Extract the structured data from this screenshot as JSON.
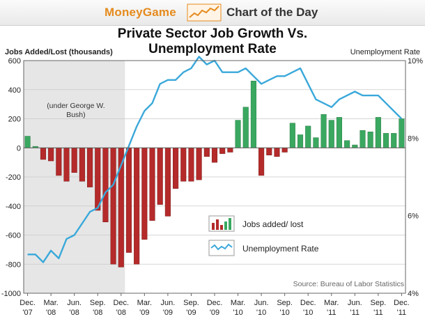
{
  "header": {
    "brand": "MoneyGame",
    "tagline": "Chart of the Day",
    "logo_icon": "rising-chart-icon",
    "brand_color": "#e58a1d"
  },
  "chart_data": {
    "type": "bar",
    "title_line1": "Private Sector Job Growth Vs.",
    "title_line2": "Unemployment Rate",
    "ylabel_left": "Jobs Added/Lost (thousands)",
    "ylabel_right": "Unemployment Rate",
    "ylim_left": [
      -1000,
      600
    ],
    "yticks_left": [
      "600",
      "400",
      "200",
      "0",
      "-200",
      "-400",
      "-600",
      "-800",
      "-1000"
    ],
    "ylim_right": [
      4,
      10
    ],
    "yticks_right": [
      "10%",
      "8%",
      "6%",
      "4%"
    ],
    "x_tick_labels": [
      [
        "Dec.",
        "'07"
      ],
      [
        "Mar.",
        "'08"
      ],
      [
        "Jun.",
        "'08"
      ],
      [
        "Sep.",
        "'08"
      ],
      [
        "Dec.",
        "'08"
      ],
      [
        "Mar.",
        "'09"
      ],
      [
        "Jun.",
        "'09"
      ],
      [
        "Sep.",
        "'09"
      ],
      [
        "Dec.",
        "'09"
      ],
      [
        "Mar.",
        "'10"
      ],
      [
        "Jun.",
        "'10"
      ],
      [
        "Sep.",
        "'10"
      ],
      [
        "Dec.",
        "'10"
      ],
      [
        "Mar.",
        "'11"
      ],
      [
        "Jun.",
        "'11"
      ],
      [
        "Sep.",
        "'11"
      ],
      [
        "Dec.",
        "'11"
      ]
    ],
    "shaded_region_label": "(under George W. Bush)",
    "shaded_region": [
      "Dec. '07",
      "Dec. '08"
    ],
    "months": [
      "Dec '07",
      "Jan '08",
      "Feb '08",
      "Mar '08",
      "Apr '08",
      "May '08",
      "Jun '08",
      "Jul '08",
      "Aug '08",
      "Sep '08",
      "Oct '08",
      "Nov '08",
      "Dec '08",
      "Jan '09",
      "Feb '09",
      "Mar '09",
      "Apr '09",
      "May '09",
      "Jun '09",
      "Jul '09",
      "Aug '09",
      "Sep '09",
      "Oct '09",
      "Nov '09",
      "Dec '09",
      "Jan '10",
      "Feb '10",
      "Mar '10",
      "Apr '10",
      "May '10",
      "Jun '10",
      "Jul '10",
      "Aug '10",
      "Sep '10",
      "Oct '10",
      "Nov '10",
      "Dec '10",
      "Jan '11",
      "Feb '11",
      "Mar '11",
      "Apr '11",
      "May '11",
      "Jun '11",
      "Jul '11",
      "Aug '11",
      "Sep '11",
      "Oct '11",
      "Nov '11",
      "Dec '11"
    ],
    "series": [
      {
        "name": "Jobs added/ lost",
        "type": "bar",
        "positive_color": "#3aa860",
        "negative_color": "#b52a2a",
        "values": [
          80,
          10,
          -80,
          -90,
          -190,
          -230,
          -170,
          -230,
          -270,
          -430,
          -510,
          -800,
          -820,
          -720,
          -800,
          -630,
          -500,
          -390,
          -470,
          -280,
          -230,
          -230,
          -220,
          -60,
          -100,
          -40,
          -30,
          190,
          280,
          460,
          -190,
          -50,
          -60,
          -30,
          170,
          90,
          150,
          70,
          230,
          190,
          210,
          50,
          20,
          120,
          110,
          210,
          100,
          100,
          200
        ]
      },
      {
        "name": "Unemployment Rate",
        "type": "line",
        "color": "#39a8da",
        "values": [
          5.0,
          5.0,
          4.8,
          5.1,
          4.9,
          5.4,
          5.5,
          5.8,
          6.1,
          6.2,
          6.6,
          6.8,
          7.3,
          7.8,
          8.3,
          8.7,
          8.9,
          9.4,
          9.5,
          9.5,
          9.7,
          9.8,
          10.1,
          9.9,
          10.0,
          9.7,
          9.7,
          9.7,
          9.8,
          9.6,
          9.4,
          9.5,
          9.6,
          9.6,
          9.7,
          9.8,
          9.4,
          9.0,
          8.9,
          8.8,
          9.0,
          9.1,
          9.2,
          9.1,
          9.1,
          9.1,
          8.9,
          8.7,
          8.5
        ]
      }
    ],
    "legend": {
      "placement": "center-right",
      "items": [
        "Jobs added/ lost",
        "Unemployment Rate"
      ]
    },
    "source": "Source: Bureau of Labor Statistics",
    "grid": "horizontal"
  }
}
